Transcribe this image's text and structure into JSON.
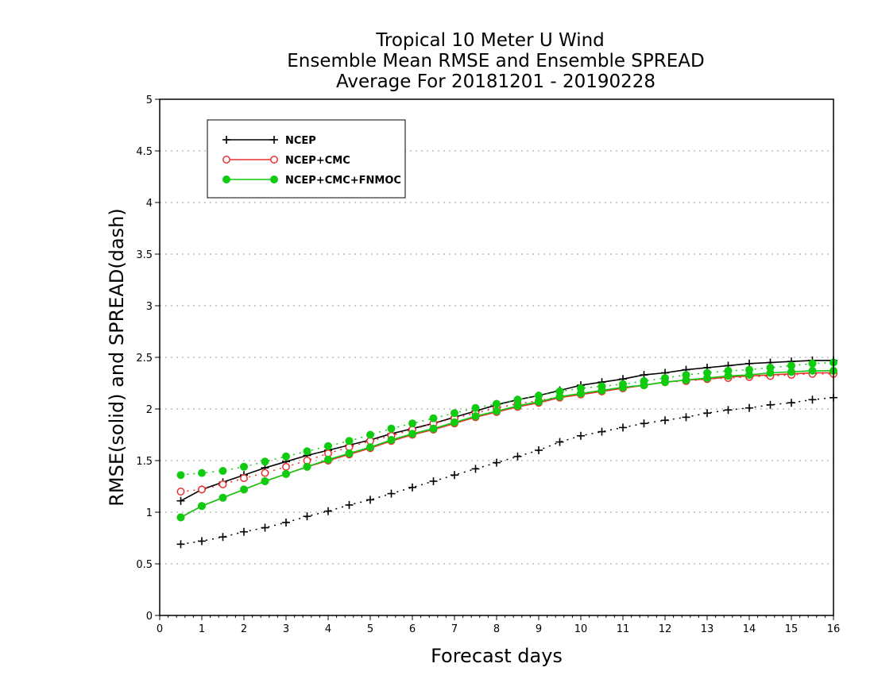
{
  "chart_data": {
    "type": "line",
    "title_lines": [
      "Tropical 10 Meter U Wind",
      "Ensemble Mean RMSE and Ensemble SPREAD",
      "Average For 20181201 - 20190228"
    ],
    "xlabel": "Forecast days",
    "ylabel": "RMSE(solid) and SPREAD(dash)",
    "xlim": [
      0,
      16
    ],
    "ylim": [
      0,
      5
    ],
    "xticks": [
      "0",
      "1",
      "2",
      "3",
      "4",
      "5",
      "6",
      "7",
      "8",
      "9",
      "10",
      "11",
      "12",
      "13",
      "14",
      "15",
      "16"
    ],
    "yticks": [
      "0",
      "0.5",
      "1",
      "1.5",
      "2",
      "2.5",
      "3",
      "3.5",
      "4",
      "4.5",
      "5"
    ],
    "grid": true,
    "legend_position": "top-left",
    "x": [
      0.5,
      1,
      1.5,
      2,
      2.5,
      3,
      3.5,
      4,
      4.5,
      5,
      5.5,
      6,
      6.5,
      7,
      7.5,
      8,
      8.5,
      9,
      9.5,
      10,
      10.5,
      11,
      11.5,
      12,
      12.5,
      13,
      13.5,
      14,
      14.5,
      15,
      15.5,
      16
    ],
    "series": [
      {
        "name": "NCEP",
        "color": "#000000",
        "marker": "plus",
        "rmse": [
          1.11,
          1.22,
          1.29,
          1.36,
          1.43,
          1.49,
          1.55,
          1.6,
          1.65,
          1.7,
          1.76,
          1.81,
          1.86,
          1.92,
          1.98,
          2.04,
          2.09,
          2.13,
          2.18,
          2.23,
          2.26,
          2.29,
          2.33,
          2.35,
          2.38,
          2.4,
          2.42,
          2.44,
          2.45,
          2.46,
          2.47,
          2.47
        ],
        "spread": [
          0.69,
          0.72,
          0.76,
          0.81,
          0.85,
          0.9,
          0.96,
          1.01,
          1.07,
          1.12,
          1.18,
          1.24,
          1.3,
          1.36,
          1.42,
          1.48,
          1.54,
          1.6,
          1.68,
          1.74,
          1.78,
          1.82,
          1.86,
          1.89,
          1.92,
          1.96,
          1.99,
          2.01,
          2.04,
          2.06,
          2.09,
          2.11
        ]
      },
      {
        "name": "NCEP+CMC",
        "color": "#e83030",
        "marker": "circle-open",
        "rmse": [
          0.95,
          1.06,
          1.14,
          1.22,
          1.3,
          1.37,
          1.44,
          1.5,
          1.56,
          1.62,
          1.69,
          1.75,
          1.8,
          1.86,
          1.92,
          1.97,
          2.02,
          2.06,
          2.11,
          2.14,
          2.17,
          2.2,
          2.23,
          2.26,
          2.28,
          2.29,
          2.31,
          2.32,
          2.33,
          2.34,
          2.35,
          2.35
        ],
        "spread": [
          1.2,
          1.22,
          1.27,
          1.33,
          1.38,
          1.44,
          1.5,
          1.57,
          1.63,
          1.69,
          1.74,
          1.8,
          1.86,
          1.91,
          1.96,
          2.01,
          2.05,
          2.08,
          2.12,
          2.15,
          2.18,
          2.21,
          2.23,
          2.26,
          2.27,
          2.29,
          2.3,
          2.31,
          2.32,
          2.33,
          2.34,
          2.34
        ]
      },
      {
        "name": "NCEP+CMC+FNMOC",
        "color": "#10cc10",
        "marker": "circle-filled",
        "rmse": [
          0.95,
          1.06,
          1.14,
          1.22,
          1.3,
          1.37,
          1.44,
          1.51,
          1.57,
          1.63,
          1.7,
          1.76,
          1.81,
          1.87,
          1.93,
          1.98,
          2.03,
          2.07,
          2.12,
          2.15,
          2.18,
          2.21,
          2.23,
          2.26,
          2.28,
          2.3,
          2.32,
          2.33,
          2.35,
          2.36,
          2.37,
          2.37
        ],
        "spread": [
          1.36,
          1.38,
          1.4,
          1.44,
          1.49,
          1.54,
          1.59,
          1.64,
          1.69,
          1.75,
          1.81,
          1.86,
          1.91,
          1.96,
          2.01,
          2.05,
          2.09,
          2.13,
          2.17,
          2.2,
          2.22,
          2.24,
          2.27,
          2.3,
          2.33,
          2.35,
          2.37,
          2.38,
          2.4,
          2.42,
          2.44,
          2.45
        ]
      }
    ]
  }
}
